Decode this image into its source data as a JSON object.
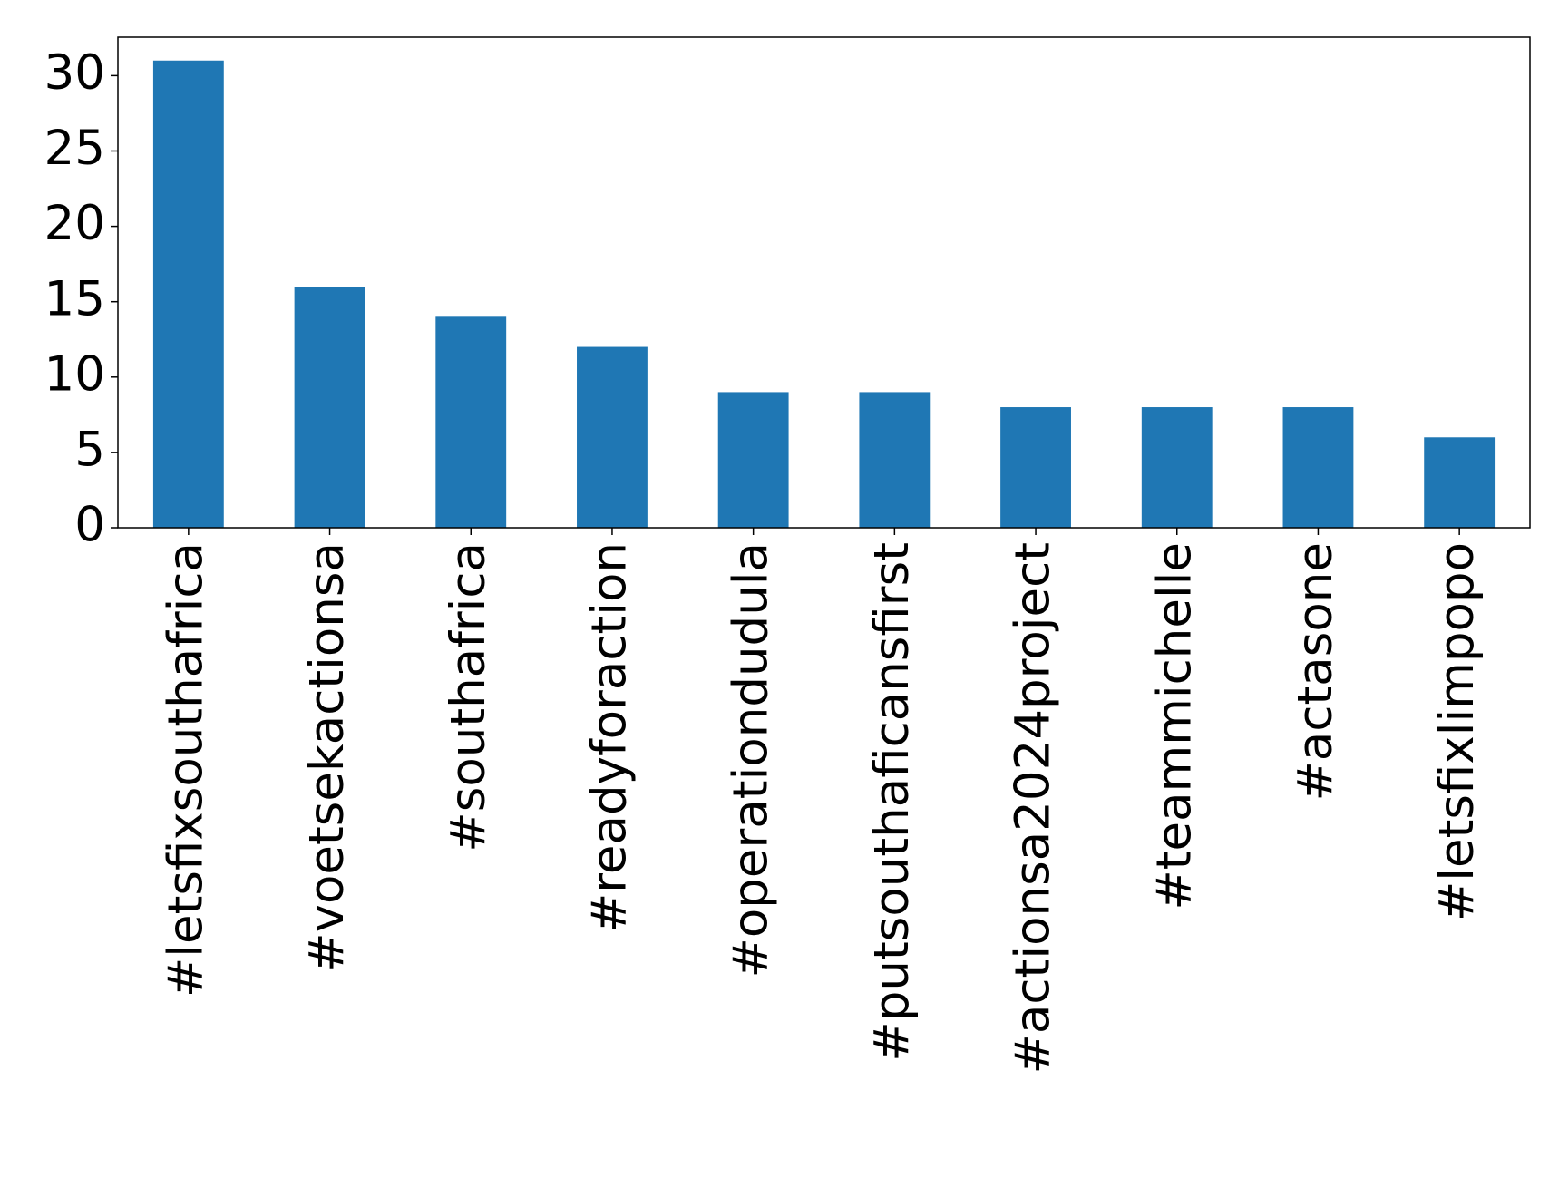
{
  "chart_data": {
    "type": "bar",
    "categories": [
      "#letsfixsouthafrica",
      "#voetsekactionsa",
      "#southafrica",
      "#readyforaction",
      "#operationdudula",
      "#putsouthaficansfirst",
      "#actionsa2024project",
      "#teammichelle",
      "#actasone",
      "#letsfixlimpopo"
    ],
    "values": [
      31,
      16,
      14,
      12,
      9,
      9,
      8,
      8,
      8,
      6
    ],
    "color": "#1f77b4",
    "ylim": [
      0,
      32.55
    ],
    "yticks": [
      0,
      5,
      10,
      15,
      20,
      25,
      30
    ]
  }
}
